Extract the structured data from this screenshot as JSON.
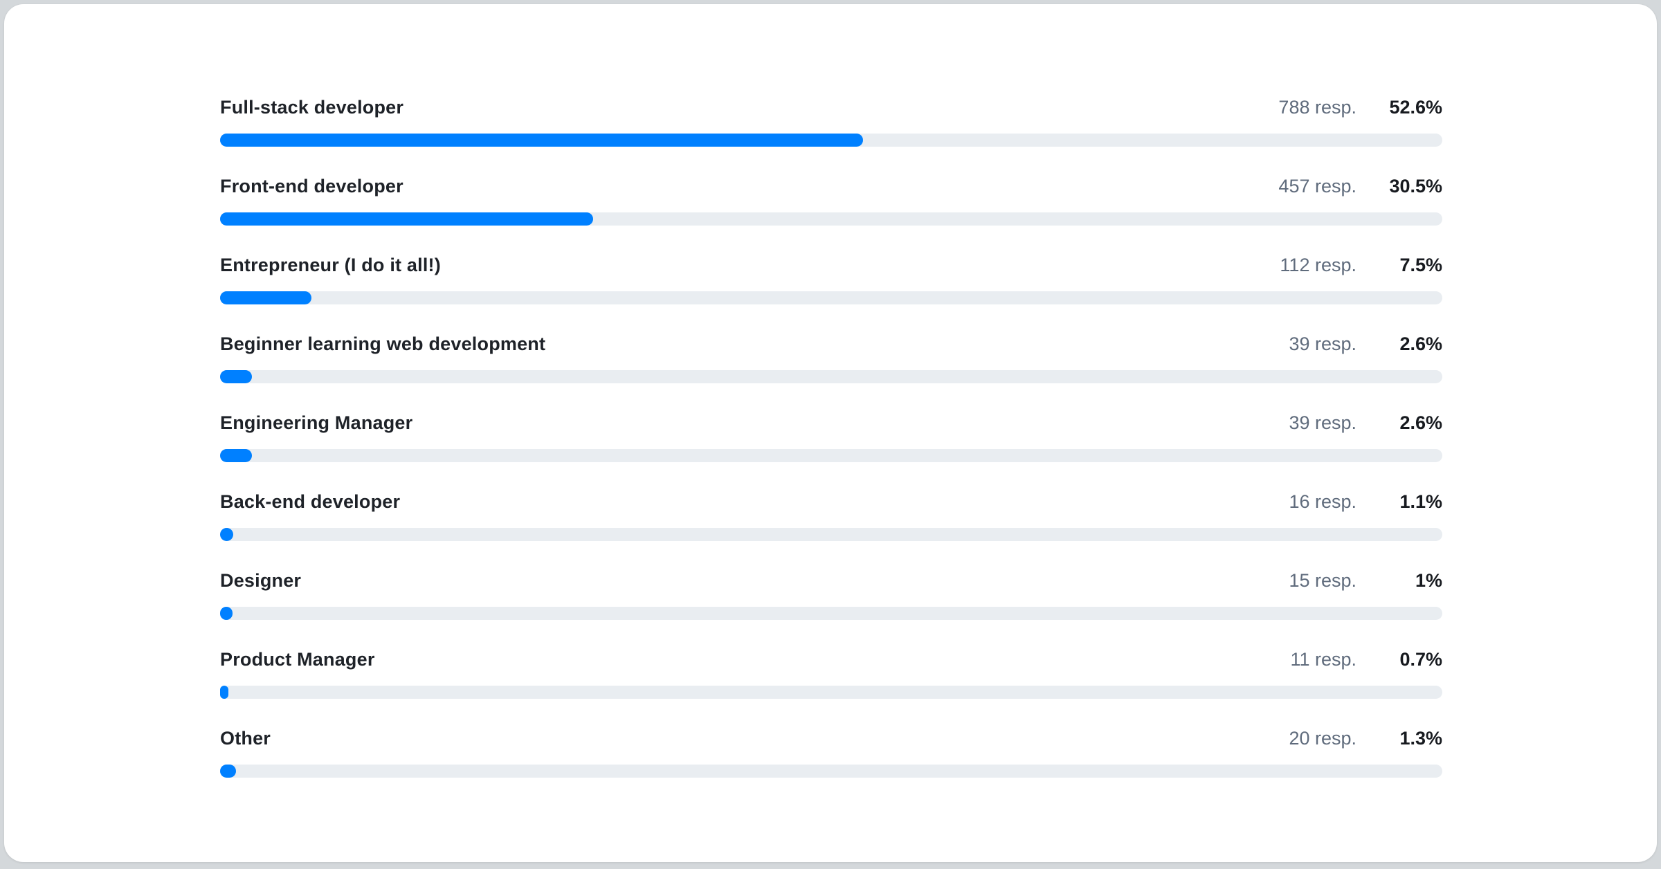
{
  "page": {
    "background_color": "#d4d8db",
    "card_background_color": "#ffffff"
  },
  "colors": {
    "bar_fill": "#0080ff",
    "bar_track": "#e9edf1",
    "label_text": "#1e2228",
    "responses_text": "#5f6b7c",
    "percent_text": "#171a1f"
  },
  "chart_data": {
    "type": "bar",
    "orientation": "horizontal",
    "title": "",
    "categories": [
      "Full-stack developer",
      "Front-end developer",
      "Entrepreneur (I do it all!)",
      "Beginner learning web development",
      "Engineering Manager",
      "Back-end developer",
      "Designer",
      "Product Manager",
      "Other"
    ],
    "series": [
      {
        "name": "responses",
        "values": [
          788,
          457,
          112,
          39,
          39,
          16,
          15,
          11,
          20
        ]
      },
      {
        "name": "percent",
        "values": [
          52.6,
          30.5,
          7.5,
          2.6,
          2.6,
          1.1,
          1,
          0.7,
          1.3
        ]
      }
    ],
    "xlim": [
      0,
      100
    ],
    "grid": false,
    "legend": false
  },
  "rows": [
    {
      "label": "Full-stack developer",
      "responses": "788 resp.",
      "percent_label": "52.6%",
      "percent": 52.6
    },
    {
      "label": "Front-end developer",
      "responses": "457 resp.",
      "percent_label": "30.5%",
      "percent": 30.5
    },
    {
      "label": "Entrepreneur (I do it all!)",
      "responses": "112 resp.",
      "percent_label": "7.5%",
      "percent": 7.5
    },
    {
      "label": "Beginner learning web development",
      "responses": "39 resp.",
      "percent_label": "2.6%",
      "percent": 2.6
    },
    {
      "label": "Engineering Manager",
      "responses": "39 resp.",
      "percent_label": "2.6%",
      "percent": 2.6
    },
    {
      "label": "Back-end developer",
      "responses": "16 resp.",
      "percent_label": "1.1%",
      "percent": 1.1
    },
    {
      "label": "Designer",
      "responses": "15 resp.",
      "percent_label": "1%",
      "percent": 1
    },
    {
      "label": "Product Manager",
      "responses": "11 resp.",
      "percent_label": "0.7%",
      "percent": 0.7
    },
    {
      "label": "Other",
      "responses": "20 resp.",
      "percent_label": "1.3%",
      "percent": 1.3
    }
  ]
}
